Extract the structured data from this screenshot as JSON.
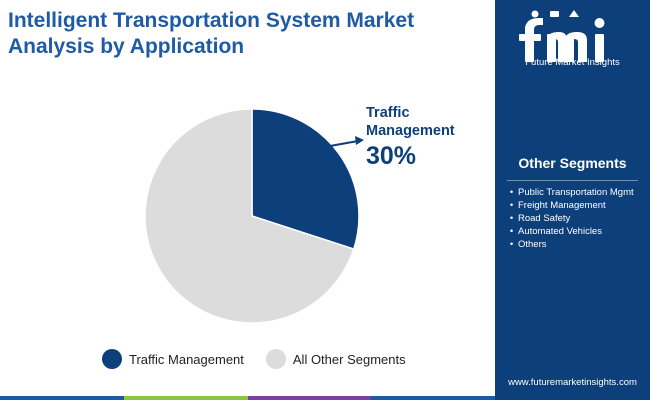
{
  "title": {
    "line1": "Intelligent Transportation System Market",
    "line2": "Analysis by Application"
  },
  "brand": {
    "logo_text": "Future Market Insights",
    "url": "www.futuremarketinsights.com"
  },
  "sidebar": {
    "heading": "Other Segments",
    "items": [
      "Public Transportation Mgmt",
      "Freight Management",
      "Road Safety",
      "Automated Vehicles",
      "Others"
    ],
    "bullet": "•"
  },
  "colors": {
    "primary": "#0d3f7a",
    "other": "#dcdcdc",
    "title": "#1f5aa6",
    "bottom_bar": [
      "#1f5aa6",
      "#8cc63f",
      "#7b3fa0",
      "#1f5aa6"
    ]
  },
  "chart_data": {
    "type": "pie",
    "title": "Intelligent Transportation System Market Analysis by Application",
    "slices": [
      {
        "label": "Traffic Management",
        "value": 30,
        "color": "#0d3f7a"
      },
      {
        "label": "All Other Segments",
        "value": 70,
        "color": "#dcdcdc"
      }
    ],
    "callout": {
      "label": "Traffic Management",
      "value_text": "30%"
    },
    "legend": [
      "Traffic Management",
      "All Other Segments"
    ],
    "legend_position": "bottom"
  }
}
